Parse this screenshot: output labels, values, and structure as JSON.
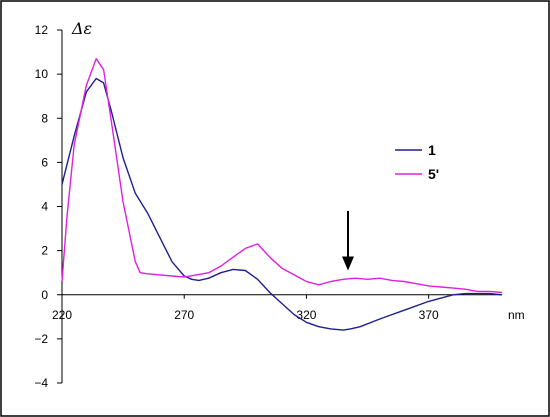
{
  "chart_data": {
    "type": "line",
    "xlabel": "nm",
    "ylabel": "Δε",
    "xlim": [
      220,
      400
    ],
    "ylim": [
      -4,
      12
    ],
    "x_ticks": [
      220,
      270,
      320,
      370
    ],
    "y_ticks": [
      -4,
      -2,
      0,
      2,
      4,
      6,
      8,
      10,
      12
    ],
    "x_tick_labels": [
      "220",
      "270",
      "320",
      "370"
    ],
    "y_tick_labels": [
      "−4",
      "−2",
      "0",
      "2",
      "4",
      "6",
      "8",
      "10",
      "12"
    ],
    "grid": false,
    "legend_position": "right",
    "annotation": {
      "type": "arrow",
      "direction": "down",
      "x": 337,
      "y_from": 3.8,
      "y_to": 1.1
    },
    "series": [
      {
        "name": "1",
        "color": "#1f1f8f",
        "x": [
          220,
          225,
          230,
          234,
          237,
          240,
          245,
          250,
          255,
          260,
          265,
          270,
          273,
          276,
          280,
          285,
          290,
          295,
          300,
          305,
          310,
          315,
          320,
          325,
          330,
          335,
          338,
          342,
          350,
          360,
          370,
          380,
          385,
          390,
          395,
          400
        ],
        "y": [
          5.0,
          7.2,
          9.2,
          9.8,
          9.6,
          8.4,
          6.2,
          4.6,
          3.7,
          2.6,
          1.5,
          0.85,
          0.7,
          0.65,
          0.75,
          1.0,
          1.15,
          1.1,
          0.7,
          0.1,
          -0.4,
          -0.9,
          -1.25,
          -1.45,
          -1.55,
          -1.6,
          -1.55,
          -1.45,
          -1.1,
          -0.7,
          -0.3,
          0.0,
          0.05,
          0.05,
          0.05,
          0.0
        ]
      },
      {
        "name": "5'",
        "color": "#e020e0",
        "x": [
          220,
          222,
          225,
          230,
          234,
          237,
          240,
          245,
          250,
          252,
          255,
          260,
          265,
          270,
          275,
          280,
          285,
          290,
          295,
          300,
          305,
          310,
          315,
          320,
          325,
          330,
          335,
          340,
          345,
          350,
          355,
          360,
          365,
          370,
          375,
          380,
          385,
          390,
          395,
          400
        ],
        "y": [
          0.6,
          3.5,
          6.8,
          9.5,
          10.7,
          10.2,
          8.0,
          4.2,
          1.5,
          1.0,
          0.95,
          0.9,
          0.85,
          0.8,
          0.9,
          1.0,
          1.3,
          1.7,
          2.1,
          2.3,
          1.7,
          1.2,
          0.9,
          0.6,
          0.45,
          0.6,
          0.7,
          0.75,
          0.7,
          0.75,
          0.65,
          0.6,
          0.5,
          0.4,
          0.35,
          0.3,
          0.25,
          0.15,
          0.15,
          0.1
        ]
      }
    ]
  }
}
